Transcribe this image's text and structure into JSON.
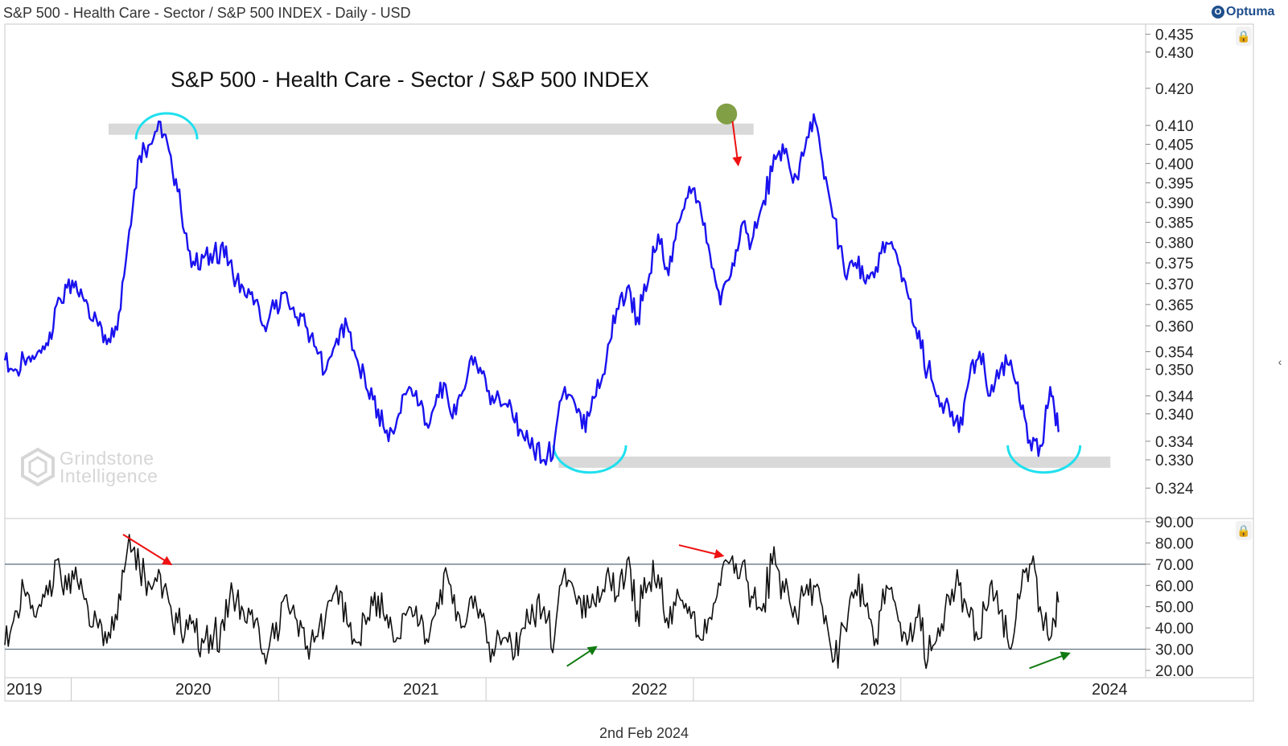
{
  "header": {
    "title": "S&P 500 - Health Care - Sector / S&P 500 INDEX - Daily - USD",
    "brand": "Optuma",
    "brand_icon": "optuma-logo-icon"
  },
  "watermark": {
    "line1": "Grindstone",
    "line2": "Intelligence",
    "icon": "hexagon-logo-icon"
  },
  "footer": {
    "date": "2nd Feb 2024"
  },
  "controls": {
    "lock_icon": "lock-icon",
    "collapse_icon": "chevron-left-icon",
    "collapse_glyph": "‹",
    "lock_glyph": "🔒"
  },
  "colors": {
    "price_line": "#1a12ee",
    "rsi_line": "#111111",
    "support_band": "#d9d9d9",
    "arc": "#1fe0ee",
    "bearish_arrow": "#ee1111",
    "bullish_arrow": "#107a10",
    "peak_marker": "#6b8e23"
  },
  "chart_data": [
    {
      "type": "line",
      "title": "S&P 500 - Health Care - Sector / S&P 500 INDEX",
      "scale": "log",
      "ylim": [
        0.3205,
        0.4365
      ],
      "yticks": [
        "0.435",
        "0.430",
        "0.420",
        "0.410",
        "0.405",
        "0.400",
        "0.395",
        "0.390",
        "0.385",
        "0.380",
        "0.375",
        "0.370",
        "0.365",
        "0.360",
        "0.354",
        "0.350",
        "0.344",
        "0.340",
        "0.334",
        "0.330",
        "0.324"
      ],
      "xlim": [
        2019.0,
        2024.5
      ],
      "x_ticks": [
        "2019",
        "2020",
        "2021",
        "2022",
        "2023",
        "2024"
      ],
      "series": [
        {
          "name": "S&P 500 - Health Care - Sector / S&P 500 INDEX",
          "x": [
            2019.0,
            2019.05,
            2019.1,
            2019.15,
            2019.2,
            2019.25,
            2019.3,
            2019.35,
            2019.4,
            2019.45,
            2019.5,
            2019.55,
            2019.6,
            2019.65,
            2019.7,
            2019.75,
            2019.8,
            2019.85,
            2019.9,
            2019.95,
            2020.0,
            2020.05,
            2020.1,
            2020.15,
            2020.2,
            2020.25,
            2020.3,
            2020.35,
            2020.4,
            2020.45,
            2020.5,
            2020.55,
            2020.6,
            2020.65,
            2020.7,
            2020.75,
            2020.8,
            2020.85,
            2020.9,
            2020.95,
            2021.0,
            2021.05,
            2021.1,
            2021.15,
            2021.2,
            2021.25,
            2021.3,
            2021.35,
            2021.4,
            2021.45,
            2021.5,
            2021.55,
            2021.6,
            2021.65,
            2021.7,
            2021.75,
            2021.8,
            2021.85,
            2021.9,
            2021.95,
            2022.0,
            2022.05,
            2022.1,
            2022.15,
            2022.2,
            2022.25,
            2022.3,
            2022.35,
            2022.4,
            2022.45,
            2022.5,
            2022.55,
            2022.6,
            2022.65,
            2022.7,
            2022.75,
            2022.8,
            2022.85,
            2022.9,
            2022.95,
            2023.0,
            2023.05,
            2023.1,
            2023.15,
            2023.2,
            2023.25,
            2023.3,
            2023.35,
            2023.4,
            2023.45,
            2023.5,
            2023.55,
            2023.6,
            2023.65,
            2023.7,
            2023.75,
            2023.8,
            2023.85,
            2023.9,
            2023.95,
            2024.0,
            2024.04,
            2024.08
          ],
          "values": [
            0.352,
            0.35,
            0.351,
            0.353,
            0.356,
            0.365,
            0.369,
            0.368,
            0.365,
            0.36,
            0.357,
            0.363,
            0.383,
            0.402,
            0.405,
            0.411,
            0.402,
            0.388,
            0.374,
            0.377,
            0.375,
            0.38,
            0.372,
            0.369,
            0.365,
            0.36,
            0.364,
            0.368,
            0.362,
            0.36,
            0.355,
            0.35,
            0.357,
            0.36,
            0.352,
            0.345,
            0.341,
            0.334,
            0.34,
            0.346,
            0.342,
            0.338,
            0.347,
            0.34,
            0.344,
            0.353,
            0.349,
            0.344,
            0.342,
            0.339,
            0.335,
            0.332,
            0.33,
            0.334,
            0.346,
            0.342,
            0.336,
            0.344,
            0.352,
            0.364,
            0.369,
            0.362,
            0.37,
            0.382,
            0.372,
            0.385,
            0.394,
            0.39,
            0.377,
            0.365,
            0.372,
            0.384,
            0.38,
            0.389,
            0.398,
            0.405,
            0.395,
            0.402,
            0.413,
            0.396,
            0.386,
            0.372,
            0.375,
            0.37,
            0.374,
            0.38,
            0.377,
            0.368,
            0.357,
            0.35,
            0.344,
            0.342,
            0.336,
            0.348,
            0.354,
            0.344,
            0.35,
            0.352,
            0.341,
            0.332,
            0.333,
            0.346,
            0.336
          ]
        }
      ],
      "annotations": [
        {
          "type": "resistance_band",
          "value": 0.409,
          "x_range": [
            2019.5,
            2022.61
          ]
        },
        {
          "type": "support_band",
          "value": 0.3295,
          "x_range": [
            2021.67,
            2024.33
          ]
        },
        {
          "type": "arc_top",
          "x": 2019.78,
          "value": 0.411
        },
        {
          "type": "arc_bottom",
          "x": 2021.82,
          "value": 0.33
        },
        {
          "type": "arc_bottom",
          "x": 2024.01,
          "value": 0.33
        },
        {
          "type": "peak_marker",
          "x": 2022.48,
          "value": 0.4135
        },
        {
          "type": "down_arrow",
          "x": 2022.52,
          "value": 0.412
        }
      ]
    },
    {
      "type": "line",
      "title": "RSI",
      "ylim": [
        20,
        90
      ],
      "yticks": [
        "90.00",
        "80.00",
        "70.00",
        "60.00",
        "50.00",
        "40.00",
        "30.00",
        "20.00"
      ],
      "reference_lines": [
        70,
        30
      ],
      "series": [
        {
          "name": "RSI",
          "x": [
            2019.0,
            2019.05,
            2019.1,
            2019.15,
            2019.2,
            2019.25,
            2019.3,
            2019.35,
            2019.4,
            2019.45,
            2019.5,
            2019.55,
            2019.6,
            2019.65,
            2019.7,
            2019.75,
            2019.8,
            2019.85,
            2019.9,
            2019.95,
            2020.0,
            2020.05,
            2020.1,
            2020.15,
            2020.2,
            2020.25,
            2020.3,
            2020.35,
            2020.4,
            2020.45,
            2020.5,
            2020.55,
            2020.6,
            2020.65,
            2020.7,
            2020.75,
            2020.8,
            2020.85,
            2020.9,
            2020.95,
            2021.0,
            2021.05,
            2021.1,
            2021.15,
            2021.2,
            2021.25,
            2021.3,
            2021.35,
            2021.4,
            2021.45,
            2021.5,
            2021.55,
            2021.6,
            2021.65,
            2021.7,
            2021.75,
            2021.8,
            2021.85,
            2021.9,
            2021.95,
            2022.0,
            2022.05,
            2022.1,
            2022.15,
            2022.2,
            2022.25,
            2022.3,
            2022.35,
            2022.4,
            2022.45,
            2022.5,
            2022.55,
            2022.6,
            2022.65,
            2022.7,
            2022.75,
            2022.8,
            2022.85,
            2022.9,
            2022.95,
            2023.0,
            2023.05,
            2023.1,
            2023.15,
            2023.2,
            2023.25,
            2023.3,
            2023.35,
            2023.4,
            2023.45,
            2023.5,
            2023.55,
            2023.6,
            2023.65,
            2023.7,
            2023.75,
            2023.8,
            2023.85,
            2023.9,
            2023.95,
            2024.0,
            2024.04,
            2024.08
          ],
          "values": [
            32,
            48,
            55,
            45,
            60,
            72,
            58,
            62,
            50,
            40,
            38,
            56,
            84,
            68,
            60,
            65,
            50,
            38,
            42,
            35,
            30,
            44,
            56,
            48,
            40,
            28,
            35,
            55,
            45,
            30,
            36,
            48,
            60,
            42,
            33,
            45,
            55,
            40,
            35,
            50,
            42,
            38,
            58,
            60,
            40,
            55,
            45,
            30,
            35,
            25,
            40,
            45,
            50,
            35,
            68,
            55,
            45,
            50,
            65,
            55,
            72,
            48,
            60,
            65,
            40,
            55,
            50,
            35,
            45,
            60,
            72,
            68,
            55,
            48,
            70,
            62,
            45,
            55,
            60,
            42,
            25,
            40,
            58,
            50,
            35,
            60,
            48,
            32,
            45,
            25,
            40,
            55,
            60,
            45,
            35,
            60,
            48,
            30,
            58,
            70,
            45,
            35,
            52
          ]
        }
      ],
      "annotations": [
        {
          "type": "bearish_divergence_arrow",
          "from": [
            2019.57,
            84
          ],
          "to": [
            2019.8,
            70
          ]
        },
        {
          "type": "bearish_divergence_arrow",
          "from": [
            2022.25,
            79
          ],
          "to": [
            2022.46,
            74
          ]
        },
        {
          "type": "bullish_divergence_arrow",
          "from": [
            2021.71,
            22
          ],
          "to": [
            2021.85,
            31
          ]
        },
        {
          "type": "bullish_divergence_arrow",
          "from": [
            2023.94,
            21
          ],
          "to": [
            2024.13,
            28
          ]
        }
      ]
    }
  ]
}
